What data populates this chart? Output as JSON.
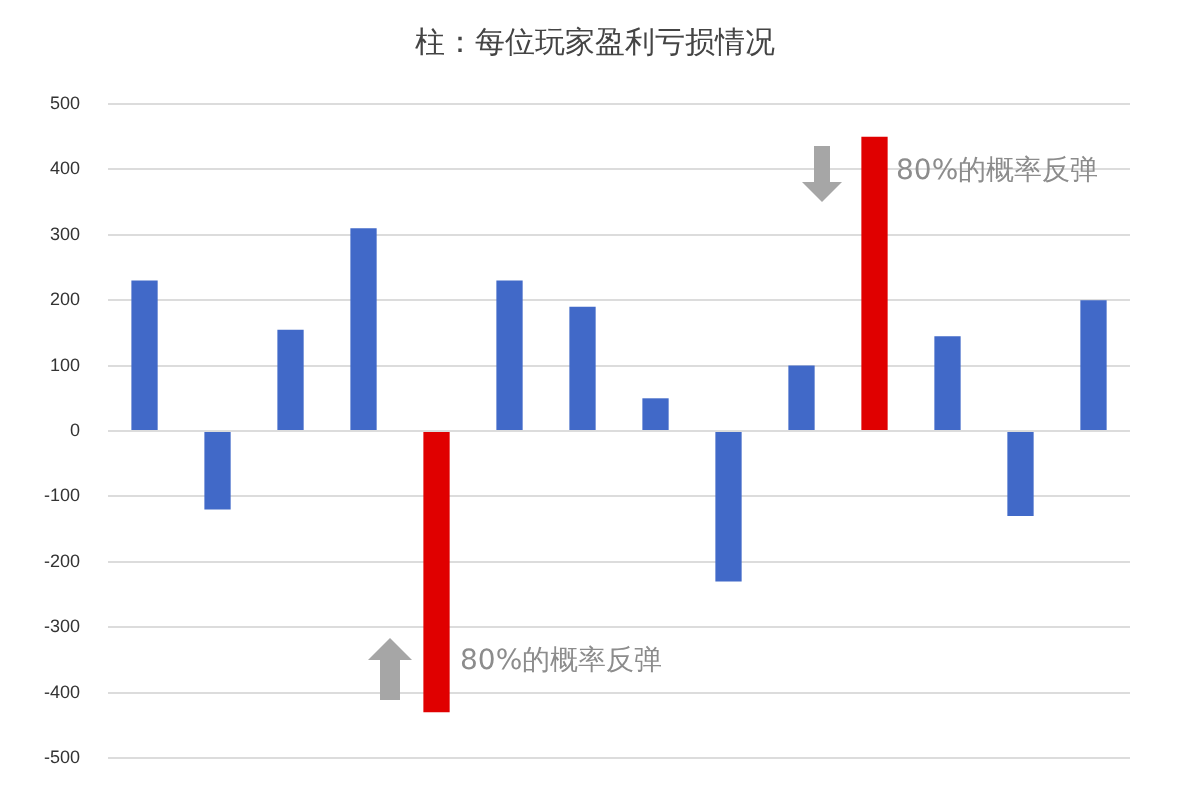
{
  "chart_data": {
    "type": "bar",
    "title": "柱：每位玩家盈利亏损情况",
    "categories": [
      null,
      null,
      null,
      null,
      null,
      null,
      null,
      null,
      null,
      null,
      null,
      null,
      null,
      null
    ],
    "values": [
      230,
      -120,
      155,
      310,
      -430,
      230,
      190,
      50,
      -230,
      100,
      450,
      145,
      -130,
      200
    ],
    "colors": [
      "#4169c8",
      "#4169c8",
      "#4169c8",
      "#4169c8",
      "#e00000",
      "#4169c8",
      "#4169c8",
      "#4169c8",
      "#4169c8",
      "#4169c8",
      "#e00000",
      "#4169c8",
      "#4169c8",
      "#4169c8"
    ],
    "ylim": [
      -500,
      500
    ],
    "yticks": [
      -500,
      -400,
      -300,
      -200,
      -100,
      0,
      100,
      200,
      300,
      400,
      500
    ],
    "grid": "y",
    "tick_labels": "y",
    "annotations": [
      "80%的概率反弹",
      "80%的概率反弹"
    ]
  }
}
